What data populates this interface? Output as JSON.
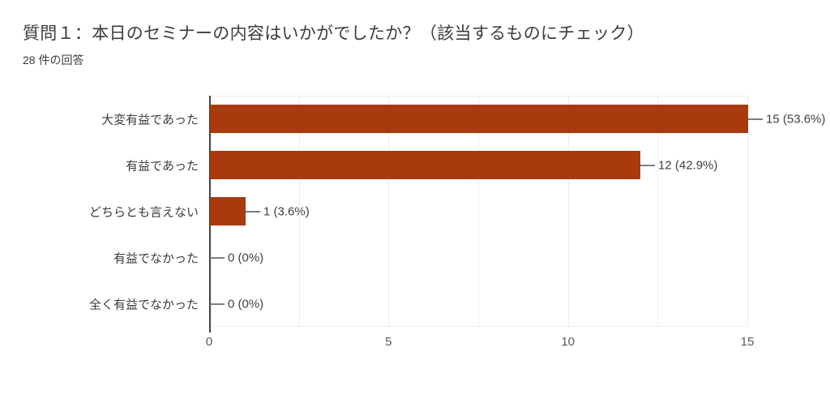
{
  "chart_data": {
    "type": "bar",
    "orientation": "horizontal",
    "title": "質問１：本日のセミナーの内容はいかがでしたか？（該当するものにチェック）",
    "subtitle": "28 件の回答",
    "total_responses": 28,
    "categories": [
      "大変有益であった",
      "有益であった",
      "どちらとも言えない",
      "有益でなかった",
      "全く有益でなかった"
    ],
    "values": [
      15,
      12,
      1,
      0,
      0
    ],
    "value_labels": [
      "15 (53.6%)",
      "12 (42.9%)",
      "1 (3.6%)",
      "0 (0%)",
      "0 (0%)"
    ],
    "xlabel": "",
    "ylabel": "",
    "xlim": [
      0,
      15
    ],
    "x_ticks": [
      "0",
      "5",
      "10",
      "15"
    ],
    "x_tick_values": [
      0,
      5,
      10,
      15
    ],
    "gridline_step": 2.5,
    "grid": true,
    "legend": "none",
    "colors": {
      "bar": "#A83A0D",
      "axis": "#424242",
      "gridline": "#ececec",
      "connector": "#7d7d7d",
      "text": "#3c3c3c"
    }
  }
}
